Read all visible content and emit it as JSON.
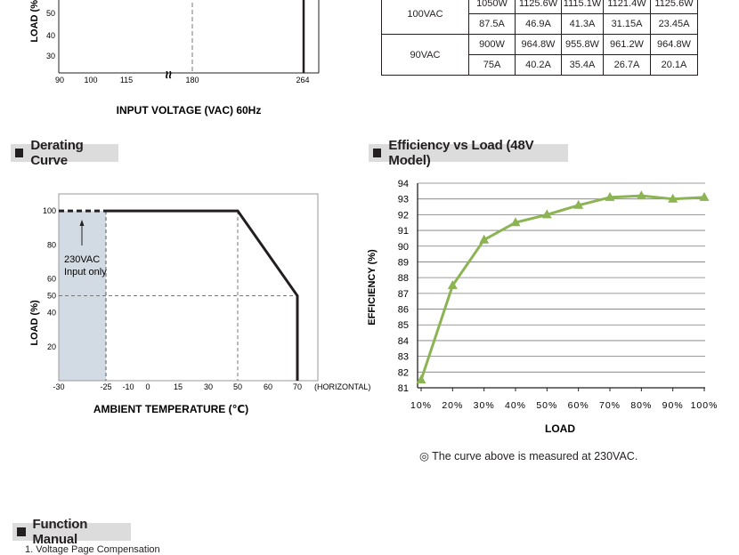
{
  "top_chart": {
    "y_ticks": [
      "50",
      "40",
      "30"
    ],
    "y_label": "LOAD (%)",
    "x_ticks": [
      "90",
      "100",
      "115",
      "180",
      "264"
    ],
    "x_label": "INPUT VOLTAGE (VAC) 60Hz",
    "break_symbol": "≈"
  },
  "spec_table": {
    "rows": [
      {
        "input": "100VAC",
        "watts": [
          "1050W",
          "1125.6W",
          "1115.1W",
          "1121.4W",
          "1125.6W"
        ],
        "amps": [
          "87.5A",
          "46.9A",
          "41.3A",
          "31.15A",
          "23.45A"
        ]
      },
      {
        "input": "90VAC",
        "watts": [
          "900W",
          "964.8W",
          "955.8W",
          "961.2W",
          "964.8W"
        ],
        "amps": [
          "75A",
          "40.2A",
          "35.4A",
          "26.7A",
          "20.1A"
        ]
      }
    ]
  },
  "sections": {
    "derating": "Derating Curve",
    "efficiency": "Efficiency vs Load (48V Model)",
    "function_manual": "Function Manual"
  },
  "derating_chart": {
    "type": "line",
    "x_ticks": [
      "-30",
      "-25",
      "-10",
      "0",
      "15",
      "30",
      "50",
      "60",
      "70"
    ],
    "x_suffix": "(HORIZONTAL)",
    "y_ticks": [
      "100",
      "80",
      "60",
      "50",
      "40",
      "20"
    ],
    "y_label": "LOAD (%)",
    "x_label": "AMBIENT TEMPERATURE (℃)",
    "annotation_line1": "230VAC",
    "annotation_line2": "Input only",
    "x": [
      -25,
      50,
      70,
      70
    ],
    "y": [
      100,
      100,
      50,
      0
    ],
    "dashed_segment": {
      "x": [
        -30,
        -25
      ],
      "y": [
        100,
        100
      ]
    },
    "shaded_region": {
      "x": [
        -30,
        -25
      ],
      "y": [
        0,
        100
      ]
    },
    "reference_lines": {
      "x_at_50": 50,
      "y_at_50": 50
    },
    "xlim": [
      -30,
      70
    ],
    "ylim": [
      0,
      110
    ]
  },
  "chart_data": {
    "type": "line",
    "categories": [
      "10%",
      "20%",
      "30%",
      "40%",
      "50%",
      "60%",
      "70%",
      "80%",
      "90%",
      "100%"
    ],
    "values": [
      81.5,
      87.5,
      90.4,
      91.5,
      92.0,
      92.6,
      93.1,
      93.2,
      93.0,
      93.1
    ],
    "xlabel": "LOAD",
    "ylabel": "EFFICIENCY (%)",
    "ylim": [
      81,
      94
    ],
    "y_ticks": [
      "94",
      "93",
      "92",
      "91",
      "90",
      "89",
      "88",
      "87",
      "86",
      "85",
      "84",
      "83",
      "82",
      "81"
    ],
    "color": "#8cb453",
    "grid": true
  },
  "efficiency_note": "◎ The curve above is measured at 230VAC.",
  "function_manual_line": "1. Voltage Page Compensation"
}
